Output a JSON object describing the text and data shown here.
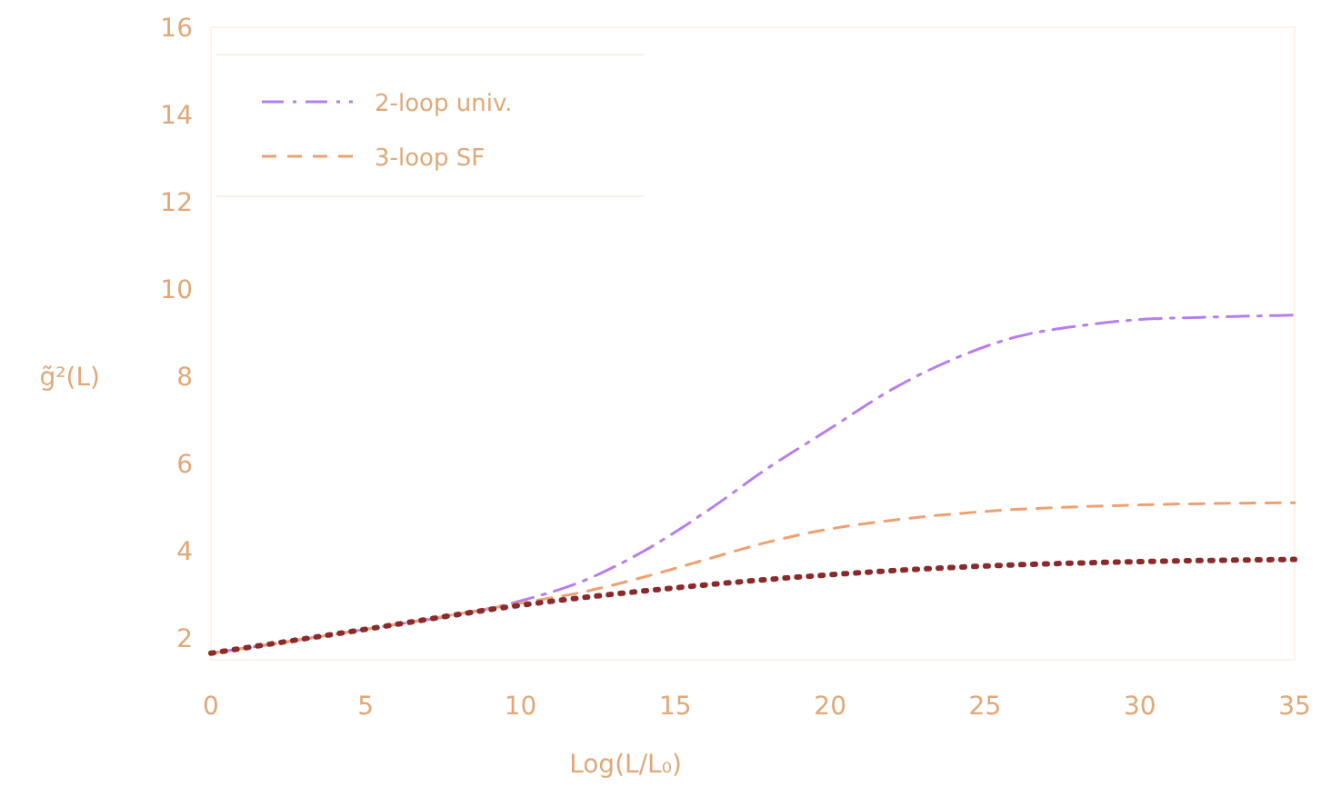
{
  "chart_data": {
    "type": "line",
    "xlabel": "Log(L/L₀)",
    "ylabel": "g̃²(L)",
    "xlim": [
      0,
      35
    ],
    "ylim": [
      1.5,
      16
    ],
    "xticks": [
      0,
      5,
      10,
      15,
      20,
      25,
      30,
      35
    ],
    "yticks": [
      2,
      4,
      6,
      8,
      10,
      12,
      14,
      16
    ],
    "legend": "top left",
    "grid": false,
    "series": [
      {
        "name": "2-loop univ.",
        "color": "#b87ef0",
        "line_style": "dashdot",
        "x": [
          0,
          5,
          10,
          12,
          14,
          16,
          18,
          20,
          22,
          24,
          26,
          28,
          30,
          32,
          35
        ],
        "values": [
          1.65,
          2.2,
          2.85,
          3.3,
          4.0,
          4.9,
          5.9,
          6.8,
          7.7,
          8.4,
          8.9,
          9.15,
          9.3,
          9.35,
          9.4
        ]
      },
      {
        "name": "3-loop SF",
        "color": "#f0a070",
        "line_style": "dashed",
        "x": [
          0,
          5,
          10,
          12,
          14,
          16,
          18,
          20,
          22,
          25,
          30,
          35
        ],
        "values": [
          1.65,
          2.2,
          2.8,
          3.05,
          3.4,
          3.8,
          4.2,
          4.5,
          4.7,
          4.9,
          5.05,
          5.1
        ]
      },
      {
        "color": "#8b2a2a",
        "line_style": "dotted",
        "x": [
          0,
          5,
          10,
          15,
          20,
          25,
          30,
          35
        ],
        "values": [
          1.65,
          2.2,
          2.75,
          3.15,
          3.45,
          3.65,
          3.75,
          3.8
        ]
      }
    ]
  }
}
